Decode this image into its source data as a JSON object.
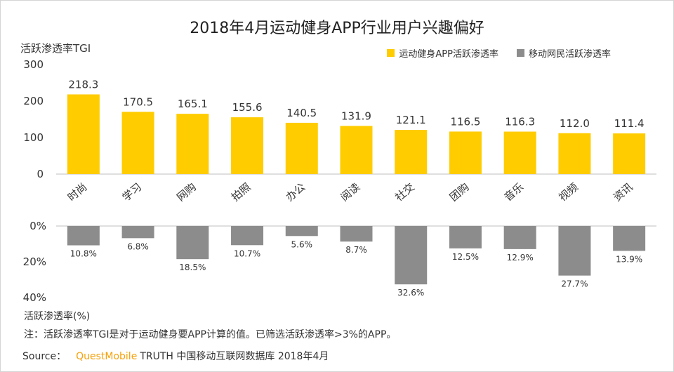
{
  "chart_data": {
    "type": "bar",
    "title": "2018年4月运动健身APP行业用户兴趣偏好",
    "categories": [
      "时尚",
      "学习",
      "网购",
      "拍照",
      "办公",
      "阅读",
      "社交",
      "团购",
      "音乐",
      "视频",
      "资讯"
    ],
    "series": [
      {
        "name": "运动健身APP活跃渗透率",
        "values": [
          218.3,
          170.5,
          165.1,
          155.6,
          140.5,
          131.9,
          121.1,
          116.5,
          116.3,
          112.0,
          111.4
        ],
        "value_labels": [
          "218.3",
          "170.5",
          "165.1",
          "155.6",
          "140.5",
          "131.9",
          "121.1",
          "116.5",
          "116.3",
          "112.0",
          "111.4"
        ],
        "color": "#ffcc00"
      },
      {
        "name": "移动网民活跃渗透率",
        "values": [
          10.8,
          6.8,
          18.5,
          10.7,
          5.6,
          8.7,
          32.6,
          12.5,
          12.9,
          27.7,
          13.9
        ],
        "value_labels": [
          "10.8%",
          "6.8%",
          "18.5%",
          "10.7%",
          "5.6%",
          "8.7%",
          "32.6%",
          "12.5%",
          "12.9%",
          "27.7%",
          "13.9%"
        ],
        "color": "#8c8c8c"
      }
    ],
    "top_panel": {
      "ylabel": "活跃渗透率TGI",
      "ylim": [
        0,
        300
      ],
      "ticks": [
        "0",
        "100",
        "200",
        "300"
      ],
      "tick_values": [
        0,
        100,
        200,
        300
      ]
    },
    "bottom_panel": {
      "ylabel": "活跃渗透率(%)",
      "ylim": [
        0,
        40
      ],
      "ticks": [
        "0%",
        "20%",
        "40%"
      ],
      "tick_values": [
        0,
        20,
        40
      ]
    },
    "legend_position": "top-right"
  },
  "footer": {
    "note": "注：活跃渗透率TGI是对于运动健身要APP计算的值。已筛选活跃渗透率>3%的APP。",
    "source_label": "Source：",
    "source_brand": "QuestMobile",
    "source_rest": "TRUTH 中国移动互联网数据库 2018年4月"
  },
  "colors": {
    "axis": "#bfbfbf",
    "brand": "#f5a10a"
  }
}
